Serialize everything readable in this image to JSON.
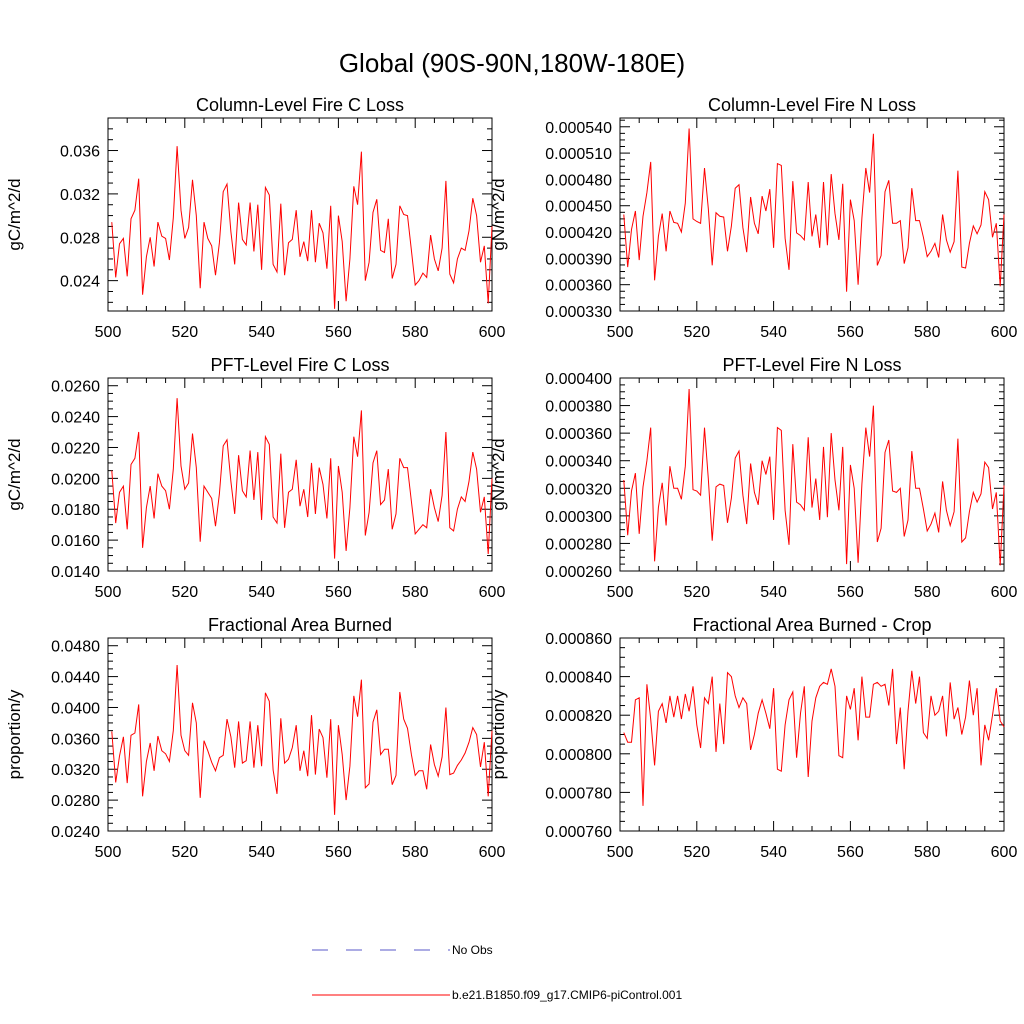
{
  "figure": {
    "title": "Global (90S-90N,180W-180E)",
    "line_color": "#ff0000",
    "obs_color": "#5a5ac8"
  },
  "legend": {
    "obs_label": "No Obs",
    "model_label": "b.e21.B1850.f09_g17.CMIP6-piControl.001"
  },
  "chart_data": [
    {
      "type": "line",
      "title": "Column-Level Fire C Loss",
      "ylabel": "gC/m^2/d",
      "xlim": [
        500,
        600
      ],
      "ylim": [
        0.0212,
        0.039
      ],
      "xticks": [
        500,
        520,
        540,
        560,
        580,
        600
      ],
      "yticks": [
        0.024,
        0.028,
        0.032,
        0.036
      ],
      "ytick_labels": [
        "0.024",
        "0.028",
        "0.032",
        "0.036"
      ],
      "x_start": 501,
      "values": [
        0.0294,
        0.0243,
        0.0274,
        0.0279,
        0.0244,
        0.0297,
        0.0305,
        0.0334,
        0.0227,
        0.0262,
        0.028,
        0.0253,
        0.0294,
        0.0281,
        0.0279,
        0.0259,
        0.0298,
        0.0364,
        0.0305,
        0.0279,
        0.0289,
        0.0333,
        0.03,
        0.0233,
        0.0294,
        0.0279,
        0.0272,
        0.0245,
        0.0275,
        0.0322,
        0.0329,
        0.0285,
        0.0255,
        0.0312,
        0.0278,
        0.0273,
        0.0312,
        0.0267,
        0.031,
        0.025,
        0.0326,
        0.0319,
        0.0255,
        0.0248,
        0.0311,
        0.0245,
        0.0275,
        0.0278,
        0.0305,
        0.0262,
        0.0276,
        0.0258,
        0.0305,
        0.0257,
        0.0293,
        0.0284,
        0.0251,
        0.0309,
        0.0214,
        0.03,
        0.0276,
        0.0221,
        0.026,
        0.0327,
        0.031,
        0.0359,
        0.024,
        0.0257,
        0.0303,
        0.0315,
        0.0268,
        0.0266,
        0.0297,
        0.0242,
        0.0255,
        0.0309,
        0.0301,
        0.03,
        0.0268,
        0.0236,
        0.024,
        0.0247,
        0.0243,
        0.0282,
        0.026,
        0.0249,
        0.027,
        0.0332,
        0.0246,
        0.0238,
        0.026,
        0.027,
        0.0268,
        0.0286,
        0.0316,
        0.03,
        0.0257,
        0.0272,
        0.0219,
        0.029
      ]
    },
    {
      "type": "line",
      "title": "Column-Level Fire N Loss",
      "ylabel": "gN/m^2/d",
      "xlim": [
        500,
        600
      ],
      "ylim": [
        0.00033,
        0.00055
      ],
      "xticks": [
        500,
        520,
        540,
        560,
        580,
        600
      ],
      "yticks": [
        0.00033,
        0.00036,
        0.00039,
        0.00042,
        0.00045,
        0.00048,
        0.00051,
        0.00054
      ],
      "ytick_labels": [
        "0.000330",
        "0.000360",
        "0.000390",
        "0.000420",
        "0.000450",
        "0.000480",
        "0.000510",
        "0.000540"
      ],
      "x_start": 501,
      "values": [
        0.00044,
        0.00038,
        0.000423,
        0.000444,
        0.000388,
        0.000438,
        0.000465,
        0.0005,
        0.000365,
        0.000415,
        0.000441,
        0.000398,
        0.000444,
        0.000431,
        0.00043,
        0.00042,
        0.000453,
        0.000538,
        0.000435,
        0.000432,
        0.00043,
        0.000493,
        0.000447,
        0.000382,
        0.000442,
        0.000438,
        0.000437,
        0.000398,
        0.000427,
        0.00047,
        0.000474,
        0.000425,
        0.000397,
        0.00046,
        0.00043,
        0.000418,
        0.000461,
        0.000444,
        0.000469,
        0.000402,
        0.000498,
        0.000496,
        0.000413,
        0.000377,
        0.000478,
        0.000419,
        0.000416,
        0.000411,
        0.000477,
        0.000415,
        0.00044,
        0.000402,
        0.000477,
        0.000405,
        0.000486,
        0.000441,
        0.000411,
        0.000475,
        0.000352,
        0.000457,
        0.000433,
        0.00036,
        0.000436,
        0.000493,
        0.000465,
        0.000532,
        0.000382,
        0.000393,
        0.000466,
        0.000479,
        0.00043,
        0.00043,
        0.000433,
        0.000384,
        0.000402,
        0.00047,
        0.000433,
        0.000433,
        0.000414,
        0.000392,
        0.000398,
        0.000407,
        0.000391,
        0.00044,
        0.000411,
        0.000397,
        0.000409,
        0.00049,
        0.00038,
        0.000379,
        0.000407,
        0.000427,
        0.000418,
        0.000428,
        0.000466,
        0.000457,
        0.000414,
        0.00043,
        0.000358,
        0.00044
      ]
    },
    {
      "type": "line",
      "title": "PFT-Level Fire C Loss",
      "ylabel": "gC/m^2/d",
      "xlim": [
        500,
        600
      ],
      "ylim": [
        0.014,
        0.0265
      ],
      "xticks": [
        500,
        520,
        540,
        560,
        580,
        600
      ],
      "yticks": [
        0.014,
        0.016,
        0.018,
        0.02,
        0.022,
        0.024,
        0.026
      ],
      "ytick_labels": [
        "0.0140",
        "0.0160",
        "0.0180",
        "0.0200",
        "0.0220",
        "0.0240",
        "0.0260"
      ],
      "x_start": 501,
      "values": [
        0.0205,
        0.0171,
        0.0191,
        0.0195,
        0.0167,
        0.0209,
        0.0213,
        0.023,
        0.0155,
        0.0181,
        0.0195,
        0.0174,
        0.0203,
        0.0195,
        0.0192,
        0.018,
        0.0206,
        0.0252,
        0.0208,
        0.0193,
        0.0197,
        0.0229,
        0.0207,
        0.0159,
        0.0195,
        0.0191,
        0.0187,
        0.0169,
        0.019,
        0.0221,
        0.0225,
        0.0198,
        0.0177,
        0.0215,
        0.0192,
        0.0188,
        0.0218,
        0.0186,
        0.0217,
        0.0173,
        0.0227,
        0.0222,
        0.0175,
        0.0171,
        0.0216,
        0.0168,
        0.0191,
        0.0193,
        0.0212,
        0.0182,
        0.0193,
        0.0175,
        0.021,
        0.0177,
        0.0207,
        0.0196,
        0.0174,
        0.0213,
        0.0148,
        0.0208,
        0.0191,
        0.0153,
        0.0181,
        0.0227,
        0.0214,
        0.0244,
        0.0163,
        0.0178,
        0.021,
        0.0218,
        0.0183,
        0.0186,
        0.0206,
        0.0167,
        0.0177,
        0.0213,
        0.0207,
        0.0207,
        0.0185,
        0.0164,
        0.0167,
        0.017,
        0.0168,
        0.0193,
        0.0181,
        0.0172,
        0.0189,
        0.023,
        0.0168,
        0.0166,
        0.018,
        0.0188,
        0.0185,
        0.0198,
        0.0217,
        0.0206,
        0.0178,
        0.0188,
        0.0151,
        0.02
      ]
    },
    {
      "type": "line",
      "title": "PFT-Level Fire N Loss",
      "ylabel": "gN/m^2/d",
      "xlim": [
        500,
        600
      ],
      "ylim": [
        0.00026,
        0.0004
      ],
      "xticks": [
        500,
        520,
        540,
        560,
        580,
        600
      ],
      "yticks": [
        0.00026,
        0.00028,
        0.0003,
        0.00032,
        0.00034,
        0.00036,
        0.00038,
        0.0004
      ],
      "ytick_labels": [
        "0.000260",
        "0.000280",
        "0.000300",
        "0.000320",
        "0.000340",
        "0.000360",
        "0.000380",
        "0.000400"
      ],
      "x_start": 501,
      "values": [
        0.000326,
        0.000286,
        0.000318,
        0.000331,
        0.000287,
        0.000321,
        0.00034,
        0.000364,
        0.000267,
        0.000306,
        0.000324,
        0.000293,
        0.000336,
        0.00032,
        0.00032,
        0.000312,
        0.000336,
        0.000392,
        0.000319,
        0.000318,
        0.000315,
        0.000364,
        0.000327,
        0.000282,
        0.000321,
        0.000323,
        0.000322,
        0.000295,
        0.000313,
        0.000342,
        0.000347,
        0.000315,
        0.000294,
        0.000338,
        0.000317,
        0.000308,
        0.00034,
        0.00033,
        0.000343,
        0.000297,
        0.000364,
        0.000362,
        0.000304,
        0.000279,
        0.000352,
        0.00031,
        0.000308,
        0.000304,
        0.000357,
        0.000306,
        0.000327,
        0.000297,
        0.00035,
        0.000299,
        0.00036,
        0.000326,
        0.000304,
        0.00035,
        0.000265,
        0.000337,
        0.00032,
        0.000266,
        0.000323,
        0.000364,
        0.000343,
        0.00038,
        0.000281,
        0.000291,
        0.000346,
        0.000355,
        0.000318,
        0.000317,
        0.00032,
        0.000285,
        0.000297,
        0.000347,
        0.00032,
        0.00032,
        0.000305,
        0.000289,
        0.000294,
        0.000302,
        0.000288,
        0.000325,
        0.000304,
        0.000293,
        0.000303,
        0.000356,
        0.000281,
        0.000284,
        0.000303,
        0.000317,
        0.00031,
        0.000316,
        0.000339,
        0.000335,
        0.000305,
        0.000317,
        0.000264,
        0.000322
      ]
    },
    {
      "type": "line",
      "title": "Fractional Area Burned",
      "ylabel": "proportion/y",
      "xlim": [
        500,
        600
      ],
      "ylim": [
        0.024,
        0.049
      ],
      "xticks": [
        500,
        520,
        540,
        560,
        580,
        600
      ],
      "yticks": [
        0.024,
        0.028,
        0.032,
        0.036,
        0.04,
        0.044,
        0.048
      ],
      "ytick_labels": [
        "0.0240",
        "0.0280",
        "0.0320",
        "0.0360",
        "0.0400",
        "0.0440",
        "0.0480"
      ],
      "x_start": 501,
      "values": [
        0.0369,
        0.0303,
        0.0337,
        0.0362,
        0.0302,
        0.0364,
        0.0367,
        0.0404,
        0.0285,
        0.033,
        0.0354,
        0.0318,
        0.0363,
        0.0344,
        0.034,
        0.033,
        0.037,
        0.0455,
        0.0364,
        0.0344,
        0.0338,
        0.0406,
        0.038,
        0.0283,
        0.0357,
        0.0344,
        0.0329,
        0.0318,
        0.0335,
        0.0338,
        0.0385,
        0.0362,
        0.0322,
        0.0382,
        0.0328,
        0.0331,
        0.0382,
        0.0322,
        0.0377,
        0.0324,
        0.0419,
        0.0408,
        0.0319,
        0.0288,
        0.0386,
        0.0328,
        0.0333,
        0.0348,
        0.0377,
        0.0318,
        0.0344,
        0.0311,
        0.039,
        0.0313,
        0.0372,
        0.0361,
        0.0309,
        0.0385,
        0.0261,
        0.0377,
        0.0339,
        0.028,
        0.0324,
        0.0415,
        0.0388,
        0.0436,
        0.0296,
        0.0301,
        0.0381,
        0.0397,
        0.0339,
        0.0346,
        0.0346,
        0.03,
        0.0312,
        0.042,
        0.0385,
        0.0373,
        0.0339,
        0.0312,
        0.0318,
        0.0318,
        0.0294,
        0.0352,
        0.0326,
        0.0311,
        0.0336,
        0.04,
        0.0313,
        0.0315,
        0.0325,
        0.0332,
        0.0341,
        0.0355,
        0.0374,
        0.0365,
        0.0323,
        0.0355,
        0.0285,
        0.037
      ]
    },
    {
      "type": "line",
      "title": "Fractional Area Burned - Crop",
      "ylabel": "proportion/y",
      "xlim": [
        500,
        600
      ],
      "ylim": [
        0.00076,
        0.00086
      ],
      "xticks": [
        500,
        520,
        540,
        560,
        580,
        600
      ],
      "yticks": [
        0.00076,
        0.00078,
        0.0008,
        0.00082,
        0.00084,
        0.00086
      ],
      "ytick_labels": [
        "0.000760",
        "0.000780",
        "0.000800",
        "0.000820",
        "0.000840",
        "0.000860"
      ],
      "x_start": 501,
      "values": [
        0.000811,
        0.000806,
        0.000806,
        0.000828,
        0.000829,
        0.000773,
        0.000836,
        0.000818,
        0.000794,
        0.000822,
        0.000826,
        0.000816,
        0.00083,
        0.000819,
        0.00083,
        0.000818,
        0.000831,
        0.000822,
        0.000835,
        0.000815,
        0.000803,
        0.000829,
        0.000826,
        0.00084,
        0.000801,
        0.000826,
        0.000805,
        0.000842,
        0.00084,
        0.00083,
        0.000824,
        0.000829,
        0.000826,
        0.000802,
        0.00081,
        0.000821,
        0.000828,
        0.000821,
        0.000813,
        0.000834,
        0.000792,
        0.000791,
        0.000815,
        0.000828,
        0.000832,
        0.000798,
        0.000821,
        0.000835,
        0.000788,
        0.000817,
        0.000829,
        0.000835,
        0.000837,
        0.000836,
        0.000844,
        0.000835,
        0.000799,
        0.000798,
        0.00083,
        0.000823,
        0.000834,
        0.000807,
        0.00084,
        0.000819,
        0.000819,
        0.000836,
        0.000837,
        0.000835,
        0.000836,
        0.000825,
        0.000844,
        0.000805,
        0.000824,
        0.000792,
        0.000822,
        0.000843,
        0.000826,
        0.00084,
        0.000811,
        0.000808,
        0.00083,
        0.00082,
        0.000822,
        0.00083,
        0.000809,
        0.000837,
        0.000818,
        0.000824,
        0.00081,
        0.000819,
        0.000838,
        0.00082,
        0.000834,
        0.000794,
        0.000815,
        0.000807,
        0.00082,
        0.000834,
        0.000817,
        0.000814
      ]
    }
  ]
}
